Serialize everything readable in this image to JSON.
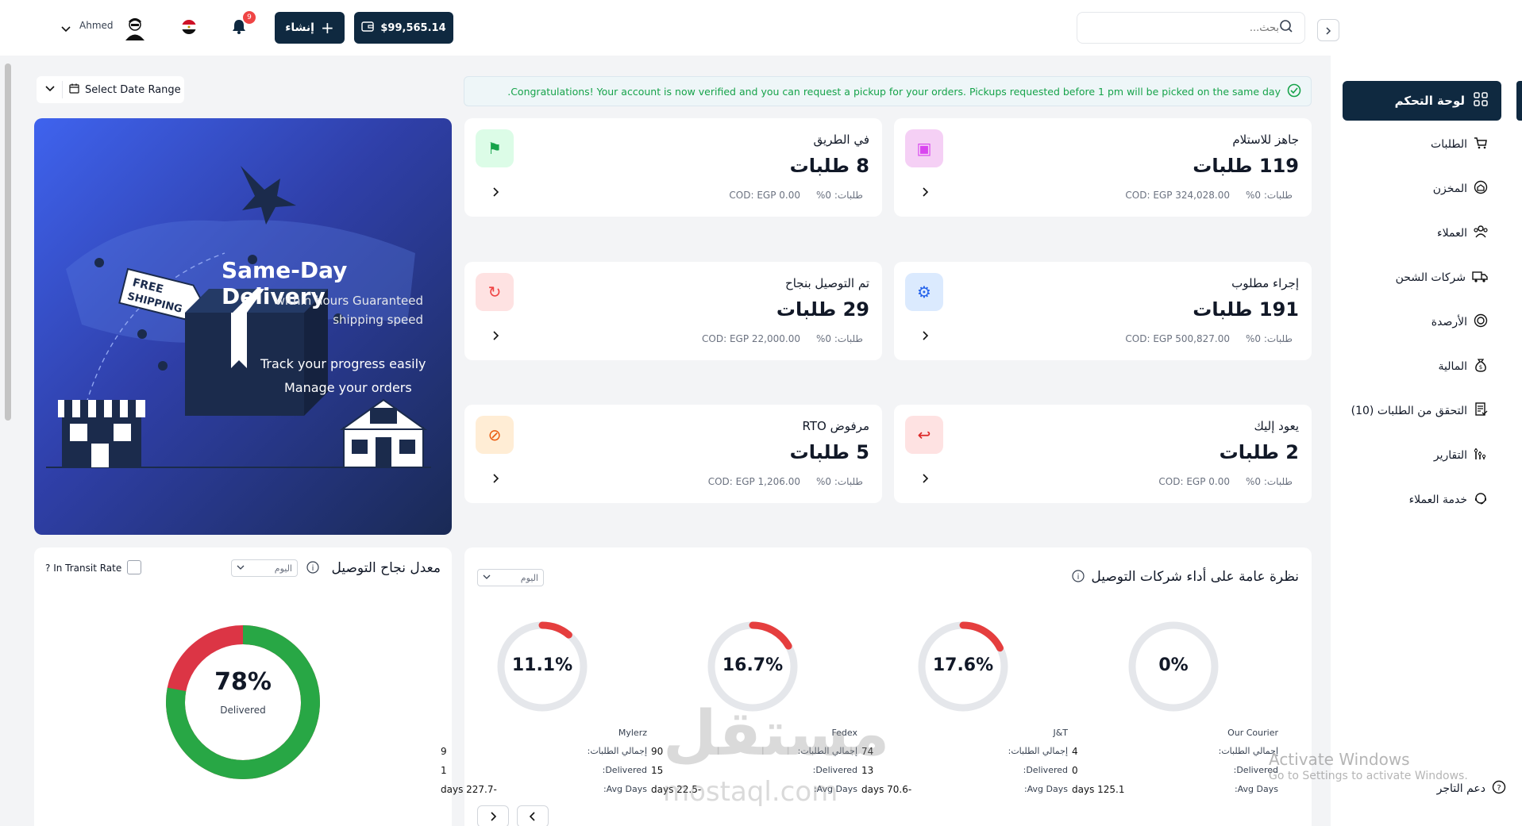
{
  "topbar": {
    "user_name": "Ahmed",
    "notification_count": "9",
    "create_label": "إنشاء",
    "balance": "$99,565.14",
    "search_placeholder": "بحث..."
  },
  "sidebar": {
    "active": "لوحة التحكم",
    "items": [
      {
        "label": "الطلبات",
        "icon": "cart-icon"
      },
      {
        "label": "المخزن",
        "icon": "warehouse-icon"
      },
      {
        "label": "العملاء",
        "icon": "customers-icon"
      },
      {
        "label": "شركات الشحن",
        "icon": "truck-icon"
      },
      {
        "label": "الأرصدة",
        "icon": "balance-icon"
      },
      {
        "label": "المالية",
        "icon": "money-bag-icon"
      },
      {
        "label": "التحقق من الطلبات (10)",
        "icon": "document-check-icon"
      },
      {
        "label": "التقارير",
        "icon": "reports-icon"
      },
      {
        "label": "خدمة العملاء",
        "icon": "support-icon"
      }
    ],
    "support": "دعم التاجر"
  },
  "filters": {
    "date_range": "Select Date Range"
  },
  "notice": "Congratulations! Your account is now verified and you can request a pickup for your orders. Pickups requested before 1 pm will be picked on the same day.",
  "banner": {
    "badge_line1": "FREE",
    "badge_line2": "SHIPPING",
    "headline": "Same-Day Delivery",
    "subline": "within hours Guaranteed shipping speed",
    "point1": "Track your progress easily",
    "point2": "Manage your orders"
  },
  "stats": [
    {
      "title": "جاهز للاستلام",
      "value": "119 طلبات",
      "cod": "COD: EGP 324,028.00",
      "pct": "طلبات: 0%",
      "color": "#f5d0f5",
      "icon_color": "#d946ef"
    },
    {
      "title": "في الطريق",
      "value": "8 طلبات",
      "cod": "COD: EGP 0.00",
      "pct": "طلبات: 0%",
      "color": "#dcfce7",
      "icon_color": "#16a34a"
    },
    {
      "title": "إجراء مطلوب",
      "value": "191 طلبات",
      "cod": "COD: EGP 500,827.00",
      "pct": "طلبات: 0%",
      "color": "#dbeafe",
      "icon_color": "#2563eb"
    },
    {
      "title": "تم التوصيل بنجاح",
      "value": "29 طلبات",
      "cod": "COD: EGP 22,000.00",
      "pct": "طلبات: 0%",
      "color": "#fee2e2",
      "icon_color": "#ef4444"
    },
    {
      "title": "يعود إليك",
      "value": "2 طلبات",
      "cod": "COD: EGP 0.00",
      "pct": "طلبات: 0%",
      "color": "#fee2e2",
      "icon_color": "#dc2626"
    },
    {
      "title": "مرفوض RTO",
      "value": "5 طلبات",
      "cod": "COD: EGP 1,206.00",
      "pct": "طلبات: 0%",
      "color": "#ffedd5",
      "icon_color": "#ea580c"
    }
  ],
  "success_rate": {
    "title": "معدل نجاح التوصيل",
    "period": "اليوم",
    "transit_label": "In Transit Rate ?",
    "percent": "78%",
    "caption": "Delivered",
    "delivered_fraction": 0.78
  },
  "carrier_perf": {
    "title": "نظرة عامة على أداء شركات التوصيل",
    "period": "اليوم",
    "labels": {
      "total": "إجمالي الطلبات:",
      "delivered": "Delivered:",
      "avg": "Avg Days:"
    },
    "carriers": [
      {
        "name": "Our Courier",
        "percent": "0%",
        "fraction": 0,
        "total": "4",
        "delivered": "0",
        "avg": "125.1 days"
      },
      {
        "name": "J&T",
        "percent": "17.6%",
        "fraction": 0.176,
        "total": "74",
        "delivered": "13",
        "avg": "-70.6 days"
      },
      {
        "name": "Fedex",
        "percent": "16.7%",
        "fraction": 0.167,
        "total": "90",
        "delivered": "15",
        "avg": "-22.5 days"
      },
      {
        "name": "Mylerz",
        "percent": "11.1%",
        "fraction": 0.111,
        "total": "9",
        "delivered": "1",
        "avg": "-227.7 days"
      }
    ]
  },
  "windows_watermark": {
    "line1": "Activate Windows",
    "line2": "Go to Settings to activate Windows."
  },
  "site_watermark": {
    "arabic": "مستقل",
    "latin": "mostaql.com"
  }
}
